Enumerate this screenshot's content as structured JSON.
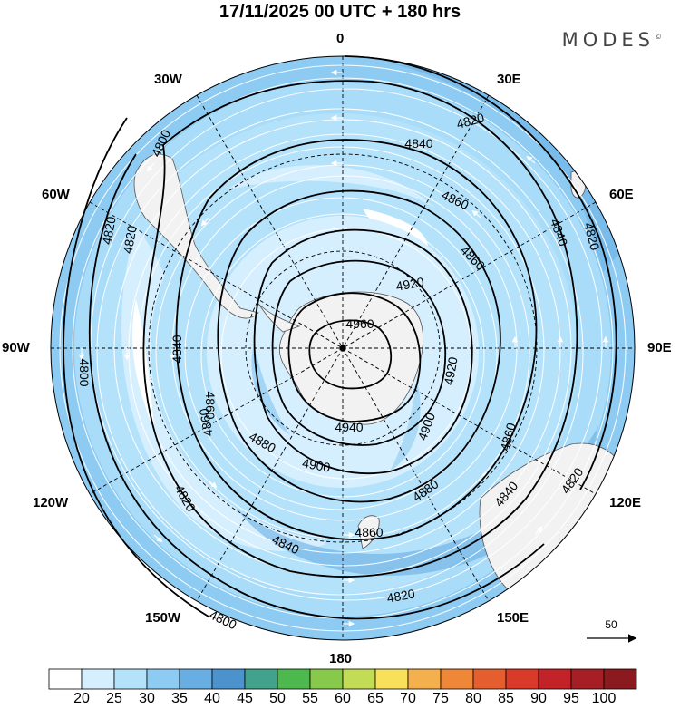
{
  "title": "17/11/2025  00 UTC  + 180 hrs",
  "brand": "MODES",
  "brand_mark": "©",
  "longitude_labels": {
    "lon_0": "0",
    "lon_30e": "30E",
    "lon_60e": "60E",
    "lon_90e": "90E",
    "lon_120e": "120E",
    "lon_150e": "150E",
    "lon_180": "180",
    "lon_150w": "150W",
    "lon_120w": "120W",
    "lon_90w": "90W",
    "lon_60w": "60W",
    "lon_30w": "30W"
  },
  "contour_labels": [
    "4800",
    "4820",
    "4840",
    "4860",
    "4880",
    "4900",
    "4920",
    "4940",
    "4960"
  ],
  "contour_label_instances": {
    "l1": "4800",
    "l2": "4820",
    "l3": "4840",
    "l4": "4860",
    "l5": "4820",
    "l6": "4840",
    "l7": "4860",
    "l8": "4860",
    "l9": "4920",
    "l10": "4960",
    "l11": "4840",
    "l12": "4820",
    "l13": "4800",
    "l14": "4820",
    "l15": "4860",
    "l16": "4920",
    "l17": "4940",
    "l18": "4900",
    "l19": "4880",
    "l20": "4900",
    "l21": "4880",
    "l22": "4860",
    "l23": "4840",
    "l24": "4820",
    "l25": "4860",
    "l26": "4840",
    "l27": "4820",
    "l28": "4800",
    "l29": "4820"
  },
  "wind_reference": "50",
  "colorbar": {
    "ticks": [
      "20",
      "25",
      "30",
      "35",
      "40",
      "45",
      "50",
      "55",
      "60",
      "65",
      "70",
      "75",
      "80",
      "85",
      "90",
      "95",
      "100"
    ],
    "colors": [
      "#ffffff",
      "#d6effe",
      "#b4e2fb",
      "#8ecbf2",
      "#68aee3",
      "#4c92cc",
      "#43a28c",
      "#4db84e",
      "#87c94b",
      "#c3dc55",
      "#f8e05a",
      "#f4b04c",
      "#ee8738",
      "#e55e2f",
      "#d93a2a",
      "#c42229",
      "#a61f24",
      "#8a1a1d"
    ]
  },
  "colors": {
    "contour": "#000000",
    "streamline": "#ffffff",
    "land": "#f2f2f2",
    "coast": "#555555"
  }
}
